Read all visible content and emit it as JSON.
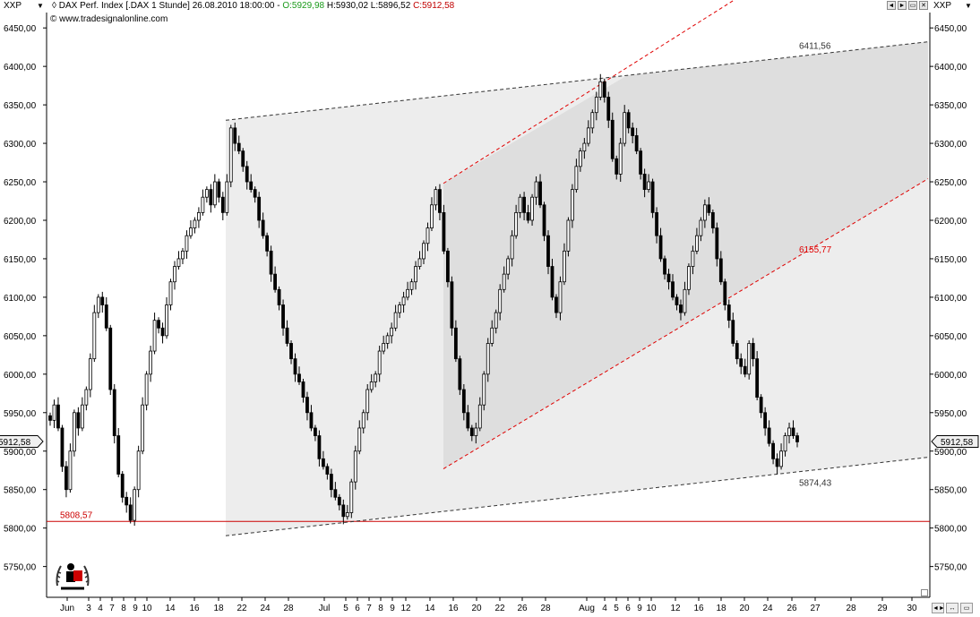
{
  "header": {
    "symbol": "XXP",
    "instrument": "DAX Perf. Index [.DAX  1 Stunde]",
    "datetime": "26.08.2010 18:00:00",
    "open": "O:5929,98",
    "high": "H:5930,02",
    "low": "L:5896,52",
    "close": "C:5912,58",
    "watermark": "© www.tradesignalonline.com"
  },
  "colors": {
    "background": "#ffffff",
    "candle": "#000000",
    "channel_red": "#e00000",
    "support_red": "#cc0000",
    "zone_light": "#ededed",
    "zone_dark": "#dedede",
    "open_green": "#1a9a1a"
  },
  "icons": [
    "symbol-caret-down-icon",
    "window-left-arrow-icon",
    "window-right-arrow-icon",
    "window-restore-icon",
    "window-close-icon",
    "resize-grip-icon",
    "logo-figure-icon"
  ],
  "chart_data": {
    "type": "candlestick",
    "timeframe": "1 Stunde",
    "ylim": [
      5710,
      6470
    ],
    "y_ticks": [
      "6450,00",
      "6400,00",
      "6350,00",
      "6300,00",
      "6250,00",
      "6200,00",
      "6150,00",
      "6100,00",
      "6050,00",
      "6000,00",
      "5950,00",
      "5900,00",
      "5850,00",
      "5800,00",
      "5750,00"
    ],
    "x_ticks": [
      "Jun",
      "3",
      "4",
      "7",
      "8",
      "9",
      "10",
      "14",
      "16",
      "18",
      "22",
      "24",
      "28",
      "Jul",
      "5",
      "6",
      "7",
      "8",
      "9",
      "12",
      "14",
      "16",
      "20",
      "22",
      "26",
      "28",
      "Aug",
      "4",
      "5",
      "6",
      "9",
      "10",
      "12",
      "16",
      "18",
      "20",
      "24",
      "26",
      "27",
      "28",
      "29",
      "30"
    ],
    "current_price_tag": "5912,58",
    "support_level": {
      "value": 5808.57,
      "label": "5808,57"
    },
    "lines": [
      {
        "name": "upper-channel-line",
        "style": "dashed-black",
        "label": "6411,56",
        "start": [
          0.0,
          6330
        ],
        "end": [
          1.0,
          6432
        ]
      },
      {
        "name": "lower-channel-line",
        "style": "dashed-black",
        "label": "5874,43",
        "start": [
          0.0,
          5790
        ],
        "end": [
          1.0,
          5892
        ]
      },
      {
        "name": "red-upper-line",
        "style": "dashed-red",
        "label": "",
        "start": [
          0.0,
          6248
        ],
        "end": [
          0.6,
          6470
        ]
      },
      {
        "name": "red-lower-line",
        "style": "dashed-red",
        "label": "6155,77",
        "start": [
          0.0,
          5877
        ],
        "end": [
          1.0,
          6254
        ]
      }
    ],
    "series": [
      {
        "name": "",
        "type": "hourly-candles",
        "close": [
          5940,
          5960,
          5930,
          5880,
          5850,
          5900,
          5950,
          5930,
          5960,
          5980,
          6020,
          6080,
          6100,
          6090,
          6060,
          5980,
          5920,
          5870,
          5840,
          5830,
          5810,
          5850,
          5900,
          5960,
          6000,
          6030,
          6070,
          6060,
          6050,
          6090,
          6120,
          6140,
          6150,
          6160,
          6180,
          6190,
          6200,
          6210,
          6230,
          6240,
          6220,
          6250,
          6230,
          6210,
          6250,
          6320,
          6300,
          6290,
          6270,
          6250,
          6240,
          6230,
          6200,
          6180,
          6160,
          6130,
          6110,
          6090,
          6060,
          6040,
          6020,
          6000,
          5990,
          5970,
          5950,
          5930,
          5920,
          5890,
          5880,
          5870,
          5850,
          5840,
          5830,
          5815,
          5820,
          5860,
          5900,
          5930,
          5950,
          5980,
          5990,
          6000,
          6030,
          6040,
          6050,
          6060,
          6080,
          6090,
          6100,
          6110,
          6120,
          6140,
          6150,
          6170,
          6190,
          6220,
          6240,
          6210,
          6160,
          6120,
          6060,
          6020,
          5980,
          5950,
          5930,
          5920,
          5930,
          5960,
          6000,
          6040,
          6060,
          6080,
          6110,
          6130,
          6150,
          6180,
          6210,
          6230,
          6210,
          6200,
          6230,
          6250,
          6220,
          6180,
          6140,
          6100,
          6080,
          6120,
          6160,
          6200,
          6240,
          6270,
          6290,
          6300,
          6320,
          6340,
          6360,
          6380,
          6360,
          6330,
          6280,
          6260,
          6300,
          6340,
          6320,
          6310,
          6290,
          6260,
          6240,
          6250,
          6210,
          6180,
          6150,
          6130,
          6120,
          6100,
          6090,
          6080,
          6110,
          6140,
          6160,
          6180,
          6200,
          6220,
          6210,
          6190,
          6150,
          6120,
          6090,
          6070,
          6040,
          6020,
          6010,
          6000,
          6040,
          6020,
          5970,
          5950,
          5930,
          5910,
          5890,
          5880,
          5900,
          5920,
          5930,
          5920,
          5912
        ]
      }
    ]
  }
}
